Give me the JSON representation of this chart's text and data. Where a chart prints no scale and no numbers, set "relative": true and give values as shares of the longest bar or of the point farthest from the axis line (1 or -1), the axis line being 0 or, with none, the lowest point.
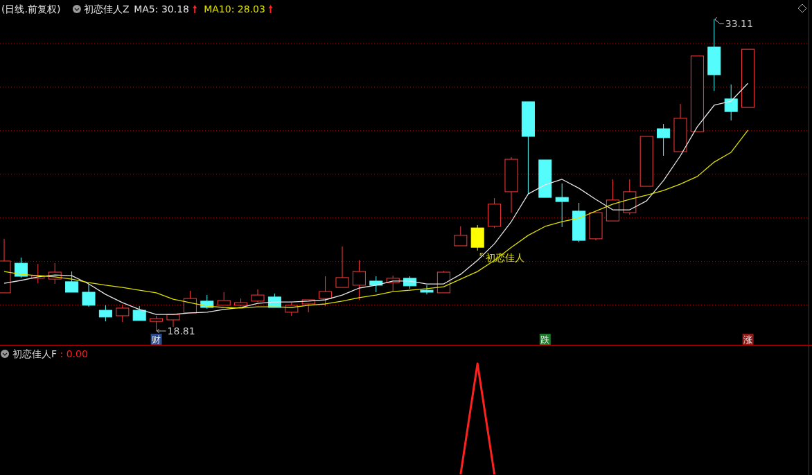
{
  "chart_data": [
    {
      "type": "candlestick",
      "title": "(日线.前复权)",
      "subtitle": "初恋佳人Z",
      "categories": [
        null,
        null,
        null,
        null,
        null,
        null,
        null,
        null,
        null,
        "财",
        null,
        null,
        null,
        null,
        null,
        null,
        null,
        null,
        null,
        null,
        null,
        null,
        null,
        null,
        null,
        null,
        null,
        null,
        null,
        null,
        null,
        null,
        "跌",
        null,
        null,
        null,
        null,
        null,
        null,
        null,
        null,
        null,
        null,
        null,
        "涨"
      ],
      "ohlc": [
        [
          20.56,
          23.04,
          20.56,
          22.02
        ],
        [
          21.92,
          22.18,
          21.26,
          21.32
        ],
        [
          21.23,
          21.89,
          21.0,
          21.35
        ],
        [
          21.19,
          21.92,
          20.97,
          21.51
        ],
        [
          21.07,
          21.54,
          20.59,
          20.59
        ],
        [
          20.59,
          20.97,
          19.92,
          19.99
        ],
        [
          19.76,
          19.99,
          19.25,
          19.45
        ],
        [
          19.51,
          20.02,
          19.22,
          19.86
        ],
        [
          19.76,
          19.95,
          19.29,
          19.29
        ],
        [
          19.25,
          19.51,
          18.81,
          19.38
        ],
        [
          19.32,
          19.6,
          19.0,
          19.57
        ],
        [
          19.64,
          20.65,
          19.64,
          20.3
        ],
        [
          20.18,
          20.46,
          19.83,
          19.89
        ],
        [
          19.99,
          20.59,
          19.99,
          20.21
        ],
        [
          19.99,
          20.3,
          19.95,
          20.11
        ],
        [
          20.18,
          20.72,
          20.14,
          20.46
        ],
        [
          20.37,
          20.53,
          19.89,
          19.89
        ],
        [
          19.67,
          20.11,
          19.51,
          19.99
        ],
        [
          20.05,
          20.24,
          19.67,
          20.24
        ],
        [
          20.3,
          21.32,
          19.95,
          20.62
        ],
        [
          20.81,
          22.69,
          20.81,
          21.26
        ],
        [
          20.91,
          22.05,
          20.24,
          21.54
        ],
        [
          21.1,
          21.32,
          20.59,
          20.91
        ],
        [
          21.03,
          21.35,
          20.65,
          21.23
        ],
        [
          21.23,
          21.32,
          20.75,
          20.88
        ],
        [
          20.68,
          20.91,
          20.49,
          20.59
        ],
        [
          20.56,
          21.57,
          20.56,
          21.51
        ],
        [
          22.72,
          23.61,
          22.72,
          23.2
        ],
        [
          23.54,
          23.67,
          22.5,
          22.65
        ],
        [
          23.61,
          24.91,
          23.54,
          24.63
        ],
        [
          25.2,
          26.79,
          24.24,
          26.69
        ],
        [
          29.33,
          29.33,
          25.1,
          27.74
        ],
        [
          26.66,
          26.66,
          24.94,
          24.94
        ],
        [
          24.94,
          25.58,
          23.58,
          24.75
        ],
        [
          24.31,
          24.69,
          22.88,
          22.97
        ],
        [
          23.04,
          24.24,
          22.97,
          24.24
        ],
        [
          23.86,
          25.77,
          23.86,
          24.82
        ],
        [
          24.24,
          25.77,
          24.15,
          25.2
        ],
        [
          25.45,
          27.74,
          25.45,
          27.74
        ],
        [
          28.09,
          28.31,
          26.85,
          27.68
        ],
        [
          27.04,
          29.23,
          27.04,
          28.57
        ],
        [
          27.96,
          31.43,
          27.96,
          31.43
        ],
        [
          31.84,
          33.11,
          29.83,
          30.57
        ],
        [
          29.46,
          30.12,
          28.47,
          28.88
        ],
        [
          29.07,
          31.74,
          29.07,
          31.74
        ]
      ],
      "colors": [
        "#ff3b3b",
        "#54fcfc",
        "#ff3b3b",
        "#ff3b3b",
        "#54fcfc",
        "#54fcfc",
        "#54fcfc",
        "#ff3b3b",
        "#54fcfc",
        "#ff3b3b",
        "#ff3b3b",
        "#ff3b3b",
        "#54fcfc",
        "#ff3b3b",
        "#ff3b3b",
        "#ff3b3b",
        "#54fcfc",
        "#ff3b3b",
        "#ff3b3b",
        "#ff3b3b",
        "#ff3b3b",
        "#ff3b3b",
        "#54fcfc",
        "#ff3b3b",
        "#54fcfc",
        "#54fcfc",
        "#ff3b3b",
        "#ff3b3b",
        "#ffff00",
        "#ff3b3b",
        "#ff3b3b",
        "#54fcfc",
        "#54fcfc",
        "#54fcfc",
        "#54fcfc",
        "#ff3b3b",
        "#ff3b3b",
        "#ff3b3b",
        "#ff3b3b",
        "#54fcfc",
        "#ff3b3b",
        "#ff3b3b",
        "#54fcfc",
        "#54fcfc",
        "#ff3b3b"
      ],
      "series": [
        {
          "name": "MA5: 30.18",
          "type": "line",
          "color": "#e6e6e6",
          "values": [
            21.0,
            21.13,
            21.29,
            21.38,
            21.35,
            20.97,
            20.49,
            20.11,
            19.8,
            19.57,
            19.57,
            19.64,
            19.67,
            19.8,
            19.89,
            20.08,
            20.14,
            20.14,
            20.18,
            20.24,
            20.46,
            20.78,
            20.91,
            21.1,
            21.1,
            20.97,
            20.97,
            21.41,
            22.05,
            22.81,
            23.83,
            25.1,
            25.52,
            25.77,
            25.36,
            24.85,
            24.37,
            24.37,
            24.78,
            25.71,
            26.85,
            28.18,
            29.17,
            29.36,
            30.18
          ]
        },
        {
          "name": "MA10: 28.03",
          "type": "line",
          "color": "#e0e000",
          "values": [
            21.54,
            21.41,
            21.35,
            21.29,
            21.19,
            21.03,
            20.91,
            20.81,
            20.68,
            20.56,
            20.27,
            20.11,
            19.95,
            19.89,
            19.86,
            19.92,
            19.92,
            19.89,
            19.99,
            20.05,
            20.18,
            20.34,
            20.46,
            20.62,
            20.68,
            20.75,
            20.84,
            21.19,
            21.54,
            22.05,
            22.65,
            23.2,
            23.61,
            23.83,
            23.99,
            24.31,
            24.63,
            24.85,
            25.04,
            25.26,
            25.55,
            25.9,
            26.56,
            27.01,
            28.03
          ]
        }
      ],
      "yticks": [
        {
          "value": 20,
          "label": null
        },
        {
          "value": 22,
          "label": null
        },
        {
          "value": 24,
          "label": null
        },
        {
          "value": 26,
          "label": null
        },
        {
          "value": 28,
          "label": null
        },
        {
          "value": 30,
          "label": null
        },
        {
          "value": 32,
          "label": null
        }
      ],
      "grid": true,
      "legend": "top left",
      "annotations": [
        "33.11",
        "18.81",
        {
          "text": "初恋佳人",
          "y": 22.5
        }
      ]
    },
    {
      "type": "line",
      "relative": true,
      "legend": "top left",
      "categories": [
        null,
        null,
        null,
        null,
        null,
        null,
        null,
        null,
        null,
        null,
        null,
        null,
        null,
        null,
        null,
        null,
        null,
        null,
        null,
        null,
        null,
        null,
        null,
        null,
        null,
        null,
        null,
        null,
        null,
        null,
        null,
        null,
        null,
        null,
        null,
        null,
        null,
        null,
        null,
        null,
        null,
        null,
        null,
        null,
        null
      ],
      "series": [
        {
          "name": "初恋佳人F : 0.00",
          "color": "#ff2020",
          "values": [
            null,
            null,
            null,
            null,
            null,
            null,
            null,
            null,
            null,
            null,
            null,
            null,
            null,
            null,
            null,
            null,
            null,
            null,
            null,
            null,
            null,
            null,
            null,
            null,
            null,
            null,
            null,
            0,
            1,
            0,
            null,
            null,
            null,
            null,
            null,
            null,
            null,
            null,
            null,
            null,
            null,
            null,
            null,
            null,
            null
          ]
        }
      ]
    }
  ]
}
